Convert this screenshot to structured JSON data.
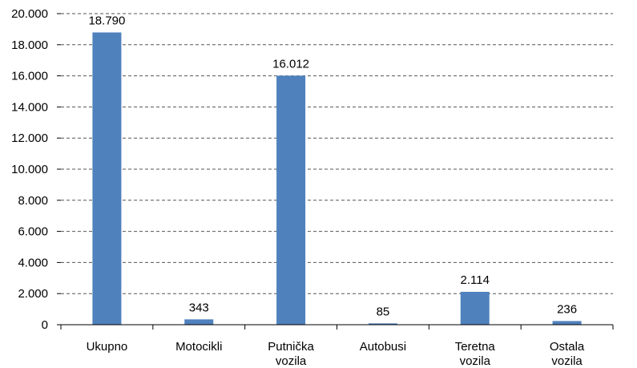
{
  "chart_data": {
    "type": "bar",
    "categories": [
      [
        "Ukupno"
      ],
      [
        "Motocikli"
      ],
      [
        "Putnička",
        "vozila"
      ],
      [
        "Autobusi"
      ],
      [
        "Teretna",
        "vozila"
      ],
      [
        "Ostala",
        "vozila"
      ]
    ],
    "values": [
      18790,
      343,
      16012,
      85,
      2114,
      236
    ],
    "data_labels": [
      "18.790",
      "343",
      "16.012",
      "85",
      "2.114",
      "236"
    ],
    "y_ticks": [
      0,
      2000,
      4000,
      6000,
      8000,
      10000,
      12000,
      14000,
      16000,
      18000,
      20000
    ],
    "y_tick_labels": [
      "0",
      "2.000",
      "4.000",
      "6.000",
      "8.000",
      "10.000",
      "12.000",
      "14.000",
      "16.000",
      "18.000",
      "20.000"
    ],
    "ylim": [
      0,
      20000
    ],
    "grid": true,
    "bar_color": "#4f81bd",
    "title": "",
    "xlabel": "",
    "ylabel": ""
  }
}
